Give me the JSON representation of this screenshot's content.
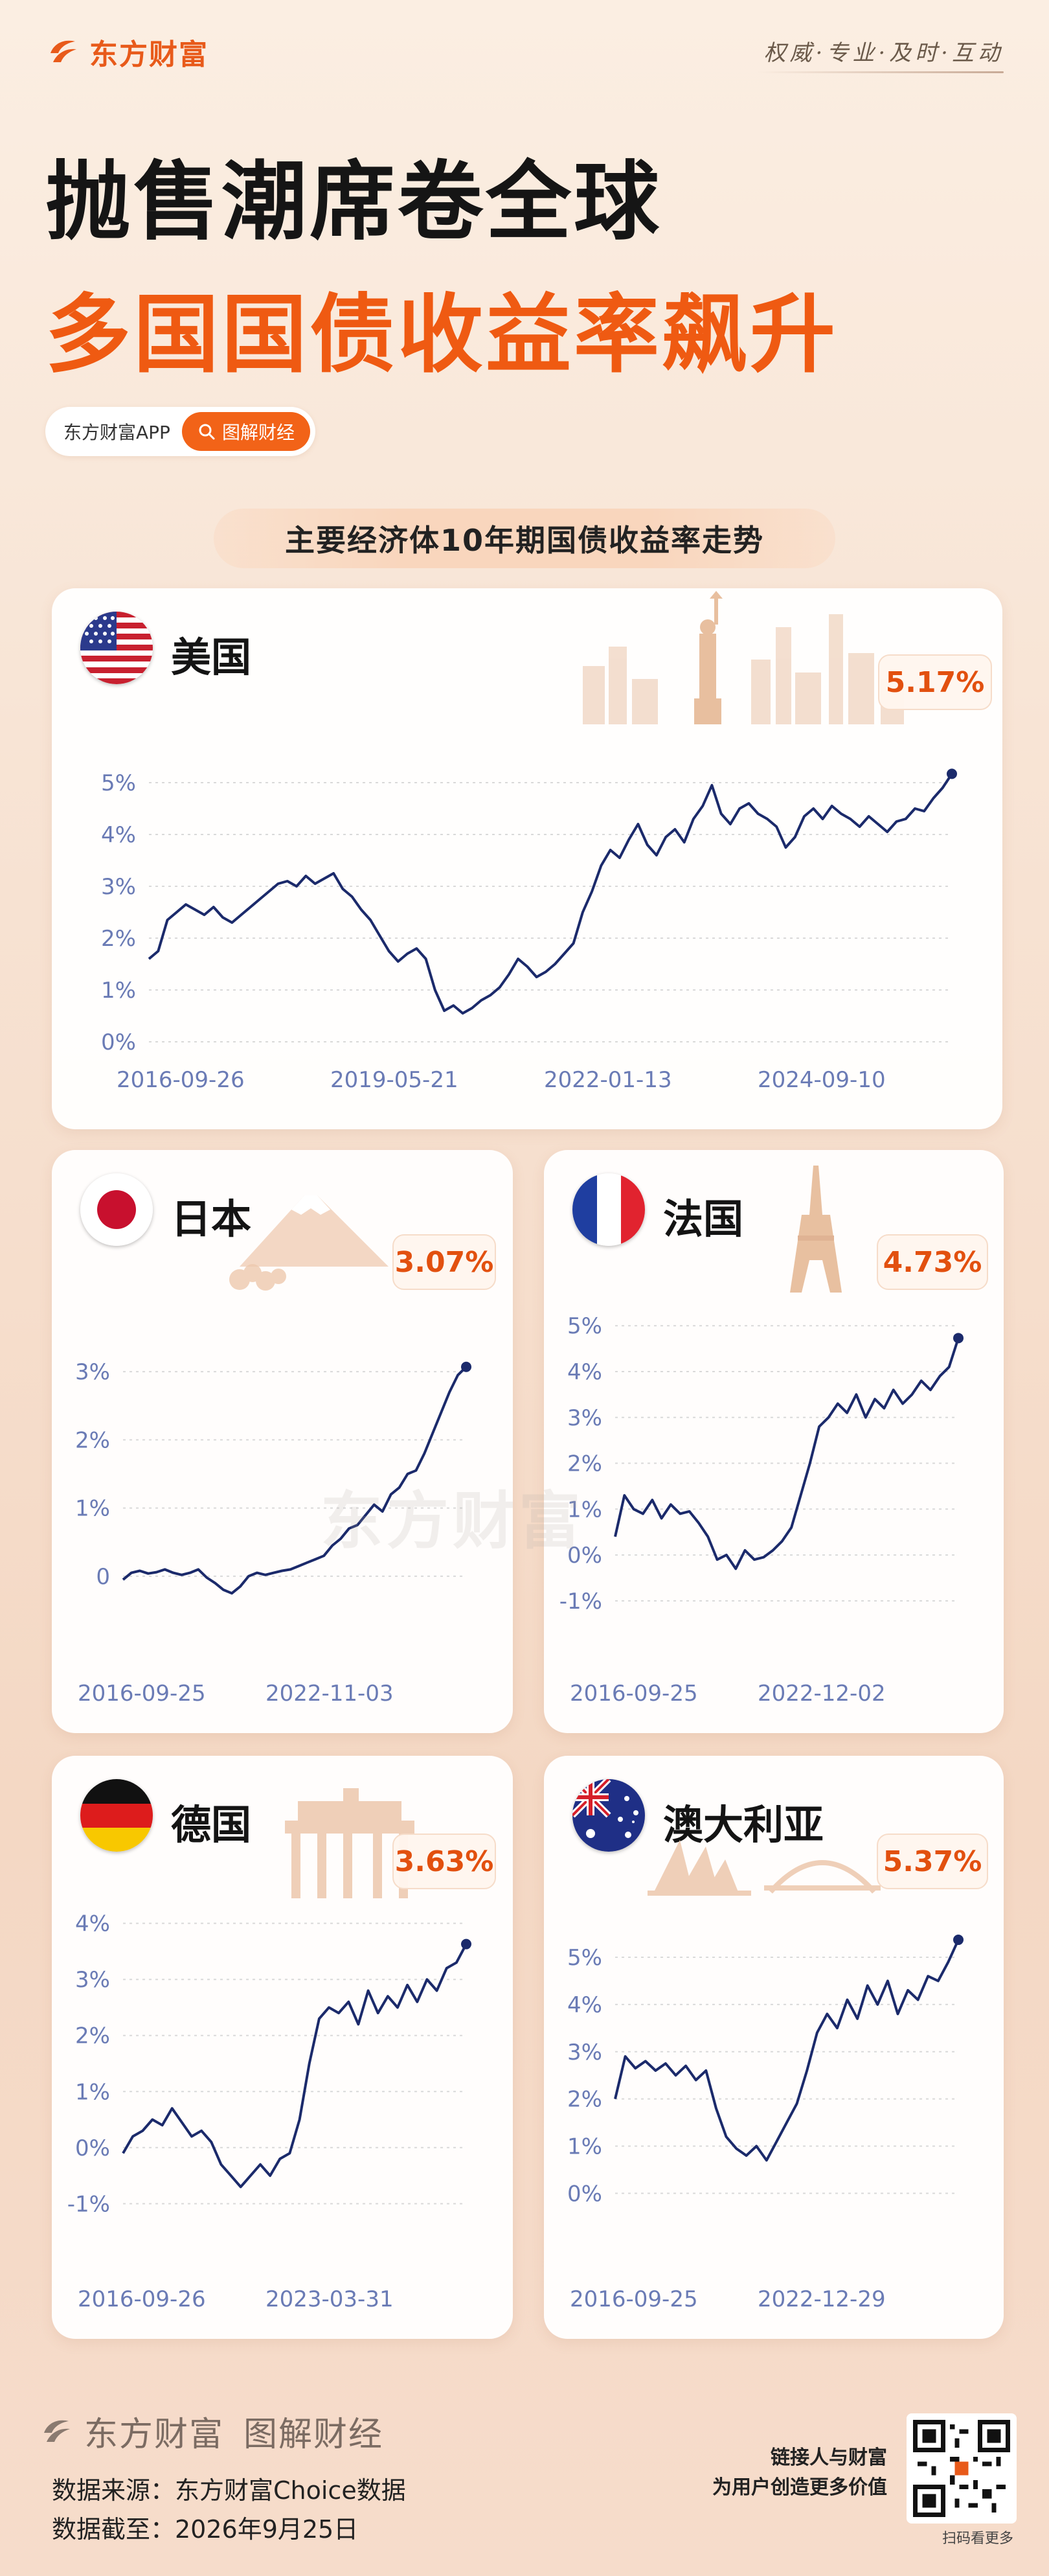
{
  "brand": {
    "name": "东方财富",
    "slogan": "权威·专业·及时·互动"
  },
  "headline": {
    "line1": "抛售潮席卷全球",
    "line2": "多国国债收益率飙升"
  },
  "pill": {
    "text": "东方财富APP",
    "button": "图解财经",
    "icon": "search-icon"
  },
  "section_title": "主要经济体10年期国债收益率走势",
  "colors": {
    "accent": "#ef5a12",
    "line": "#1b2a6b",
    "headline": "#151515"
  },
  "cards": {
    "us": {
      "country": "美国",
      "latest": "5.17%"
    },
    "jp": {
      "country": "日本",
      "latest": "3.07%"
    },
    "fr": {
      "country": "法国",
      "latest": "4.73%"
    },
    "de": {
      "country": "德国",
      "latest": "3.63%"
    },
    "au": {
      "country": "澳大利亚",
      "latest": "5.37%"
    }
  },
  "watermark": "东方财富",
  "footer": {
    "brand": "东方财富",
    "sub": "图解财经",
    "source": "数据来源：东方财富Choice数据",
    "date": "数据截至：2026年9月25日",
    "tag1": "链接人与财富",
    "tag2": "为用户创造更多价值",
    "qr_caption": "扫码看更多"
  },
  "chart_data": [
    {
      "id": "us",
      "type": "line",
      "title": "美国",
      "ylim": [
        0,
        5.5
      ],
      "yticks": [
        0,
        1,
        2,
        3,
        4,
        5
      ],
      "ytick_labels": [
        "0%",
        "1%",
        "2%",
        "3%",
        "4%",
        "5%"
      ],
      "xticks": [
        "2016-09-26",
        "2019-05-21",
        "2022-01-13",
        "2024-09-10"
      ],
      "grid": true,
      "series": [
        {
          "values": [
            1.6,
            1.75,
            2.35,
            2.5,
            2.65,
            2.55,
            2.45,
            2.6,
            2.4,
            2.3,
            2.45,
            2.6,
            2.75,
            2.9,
            3.05,
            3.1,
            3.0,
            3.2,
            3.05,
            3.15,
            3.25,
            2.95,
            2.8,
            2.55,
            2.35,
            2.05,
            1.75,
            1.55,
            1.7,
            1.8,
            1.6,
            1.0,
            0.6,
            0.7,
            0.55,
            0.65,
            0.8,
            0.9,
            1.05,
            1.3,
            1.6,
            1.45,
            1.25,
            1.35,
            1.5,
            1.7,
            1.9,
            2.5,
            2.9,
            3.4,
            3.7,
            3.55,
            3.9,
            4.2,
            3.8,
            3.6,
            3.95,
            4.1,
            3.85,
            4.3,
            4.55,
            4.95,
            4.4,
            4.2,
            4.5,
            4.6,
            4.4,
            4.3,
            4.15,
            3.75,
            3.95,
            4.35,
            4.5,
            4.3,
            4.55,
            4.4,
            4.3,
            4.15,
            4.35,
            4.2,
            4.05,
            4.25,
            4.3,
            4.5,
            4.45,
            4.7,
            4.9,
            5.17
          ]
        }
      ]
    },
    {
      "id": "jp",
      "type": "line",
      "title": "日本",
      "ylim": [
        -0.4,
        3.4
      ],
      "yticks": [
        0,
        1,
        2,
        3
      ],
      "ytick_labels": [
        "0",
        "1%",
        "2%",
        "3%"
      ],
      "xticks": [
        "2016-09-25",
        "2022-11-03"
      ],
      "grid": true,
      "series": [
        {
          "values": [
            -0.05,
            0.05,
            0.08,
            0.04,
            0.06,
            0.1,
            0.05,
            0.02,
            0.05,
            0.1,
            -0.02,
            -0.1,
            -0.2,
            -0.25,
            -0.15,
            0.0,
            0.05,
            0.02,
            0.05,
            0.08,
            0.1,
            0.15,
            0.2,
            0.25,
            0.3,
            0.45,
            0.55,
            0.7,
            0.75,
            0.9,
            1.05,
            0.95,
            1.2,
            1.3,
            1.5,
            1.55,
            1.8,
            2.1,
            2.4,
            2.7,
            2.95,
            3.07
          ]
        }
      ]
    },
    {
      "id": "fr",
      "type": "line",
      "title": "法国",
      "ylim": [
        -1.2,
        5.3
      ],
      "yticks": [
        -1,
        0,
        1,
        2,
        3,
        4,
        5
      ],
      "ytick_labels": [
        "-1%",
        "0%",
        "1%",
        "2%",
        "3%",
        "4%",
        "5%"
      ],
      "xticks": [
        "2016-09-25",
        "2022-12-02"
      ],
      "grid": true,
      "series": [
        {
          "values": [
            0.4,
            1.3,
            1.0,
            0.9,
            1.2,
            0.8,
            1.1,
            0.9,
            0.95,
            0.7,
            0.4,
            -0.1,
            0.0,
            -0.3,
            0.1,
            -0.1,
            -0.05,
            0.1,
            0.3,
            0.6,
            1.3,
            2.0,
            2.8,
            3.0,
            3.3,
            3.1,
            3.5,
            3.0,
            3.4,
            3.2,
            3.6,
            3.3,
            3.5,
            3.8,
            3.6,
            3.9,
            4.1,
            4.73
          ]
        }
      ]
    },
    {
      "id": "de",
      "type": "line",
      "title": "德国",
      "ylim": [
        -1.1,
        4.1
      ],
      "yticks": [
        -1,
        0,
        1,
        2,
        3,
        4
      ],
      "ytick_labels": [
        "-1%",
        "0%",
        "1%",
        "2%",
        "3%",
        "4%"
      ],
      "xticks": [
        "2016-09-26",
        "2023-03-31"
      ],
      "grid": true,
      "series": [
        {
          "values": [
            -0.1,
            0.2,
            0.3,
            0.5,
            0.4,
            0.7,
            0.45,
            0.2,
            0.3,
            0.1,
            -0.3,
            -0.5,
            -0.7,
            -0.5,
            -0.3,
            -0.5,
            -0.2,
            -0.1,
            0.5,
            1.5,
            2.3,
            2.5,
            2.4,
            2.6,
            2.2,
            2.8,
            2.4,
            2.7,
            2.5,
            2.9,
            2.6,
            3.0,
            2.8,
            3.2,
            3.3,
            3.63
          ]
        }
      ]
    },
    {
      "id": "au",
      "type": "line",
      "title": "澳大利亚",
      "ylim": [
        -0.2,
        5.7
      ],
      "yticks": [
        0,
        1,
        2,
        3,
        4,
        5
      ],
      "ytick_labels": [
        "0%",
        "1%",
        "2%",
        "3%",
        "4%",
        "5%"
      ],
      "xticks": [
        "2016-09-25",
        "2022-12-29"
      ],
      "grid": true,
      "series": [
        {
          "values": [
            2.0,
            2.9,
            2.65,
            2.8,
            2.6,
            2.75,
            2.5,
            2.7,
            2.4,
            2.6,
            1.8,
            1.2,
            0.95,
            0.8,
            1.0,
            0.7,
            1.1,
            1.5,
            1.9,
            2.6,
            3.4,
            3.8,
            3.5,
            4.1,
            3.7,
            4.4,
            4.0,
            4.5,
            3.8,
            4.3,
            4.1,
            4.6,
            4.5,
            4.9,
            5.37
          ]
        }
      ]
    }
  ]
}
